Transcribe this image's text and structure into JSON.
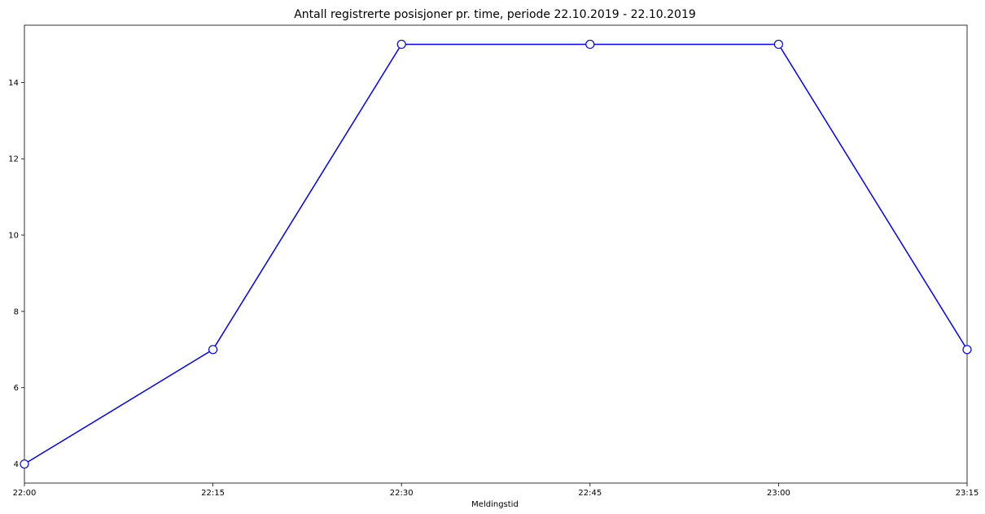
{
  "chart_data": {
    "type": "line",
    "title": "Antall registrerte posisjoner pr. time, periode 22.10.2019 - 22.10.2019",
    "xlabel": "Meldingstid",
    "ylabel": "",
    "x": [
      "22:00",
      "22:15",
      "22:30",
      "22:45",
      "23:00",
      "23:15"
    ],
    "x_ticks": [
      "22:00",
      "22:15",
      "22:30",
      "22:45",
      "23:00",
      "23:15"
    ],
    "y_ticks": [
      4,
      6,
      8,
      10,
      12,
      14
    ],
    "ylim": [
      3.5,
      15.5
    ],
    "series": [
      {
        "values": [
          4,
          7,
          15,
          15,
          15,
          7
        ],
        "color": "#0000ff",
        "marker": "circle",
        "marker_fill": "#ffffff"
      }
    ],
    "grid": false,
    "legend": "none"
  }
}
